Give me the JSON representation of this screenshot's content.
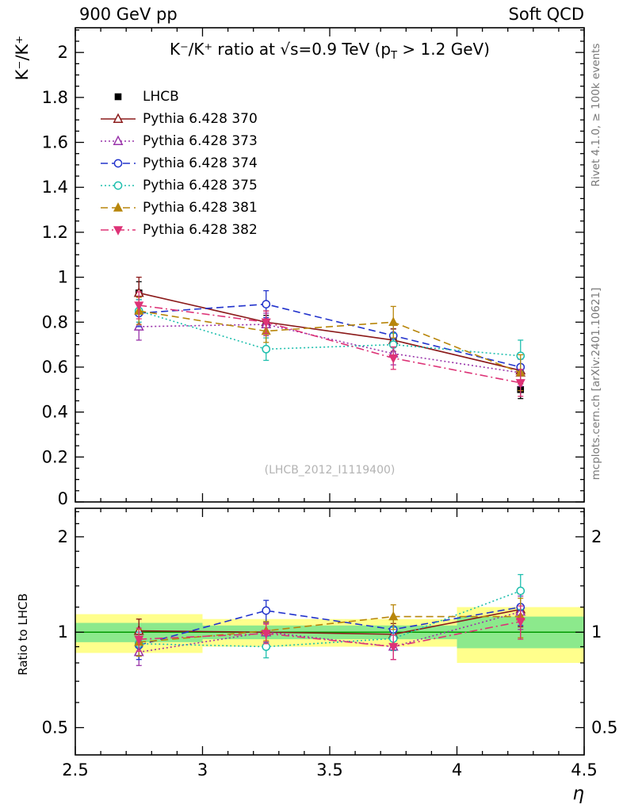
{
  "header": {
    "left": "900 GeV pp",
    "right": "Soft QCD"
  },
  "side_notes": {
    "top_right_vertical": "Rivet 4.1.0, ≥ 100k events",
    "bottom_right_vertical": "mcplots.cern.ch [arXiv:2401.10621]"
  },
  "chart_data": {
    "type": "line",
    "title": "K⁻/K⁺ ratio at √s=0.9 TeV (pT > 1.2 GeV)",
    "title_parts": {
      "pre": "K⁻/K⁺ ratio at √s=0.9 TeV (p",
      "sub": "T",
      "post": " > 1.2 GeV)"
    },
    "watermark": "(LHCB_2012_I1119400)",
    "xlabel": "η",
    "ylabel_main": "K⁻/K⁺",
    "ylabel_ratio": "Ratio to LHCB",
    "xlim": [
      2.5,
      4.5
    ],
    "ylim_main": [
      0,
      2.11
    ],
    "ylim_ratio": [
      0.41,
      2.46
    ],
    "ratio_scale": "log",
    "grid": "off",
    "legend_position": "top-left-inside",
    "x_major_ticks": [
      2.5,
      3,
      3.5,
      4,
      4.5
    ],
    "x_tick_labels": [
      "2.5",
      "3",
      "3.5",
      "4",
      "4.5"
    ],
    "y_ticks_main": [
      0,
      0.2,
      0.4,
      0.6,
      0.8,
      1,
      1.2,
      1.4,
      1.6,
      1.8,
      2
    ],
    "ratio_major_ticks": [
      0.5,
      1,
      2
    ],
    "ratio_minor_ticks": [
      0.6,
      0.7,
      0.8,
      0.9,
      1.2,
      1.4,
      1.6,
      1.8,
      2.2,
      2.4
    ],
    "x": [
      2.75,
      3.25,
      3.75,
      4.25
    ],
    "series": [
      {
        "id": "lhcb",
        "name": "LHCB",
        "color": "#000000",
        "marker": "square-filled",
        "line": "none",
        "values": [
          0.93,
          0.79,
          0.73,
          0.5
        ],
        "errors": [
          0.05,
          0.04,
          0.04,
          0.04
        ]
      },
      {
        "id": "pythia-370",
        "name": "Pythia 6.428 370",
        "color": "#8b1a1a",
        "marker": "triangle-open",
        "line": "solid",
        "values": [
          0.93,
          0.8,
          0.72,
          0.585
        ],
        "errors": [
          0.07,
          0.05,
          0.05,
          0.06
        ],
        "ratio": [
          1.01,
          1.0,
          0.985,
          1.18
        ],
        "ratio_errors": [
          0.09,
          0.07,
          0.08,
          0.14
        ]
      },
      {
        "id": "pythia-373",
        "name": "Pythia 6.428 373",
        "color": "#9933aa",
        "marker": "triangle-open",
        "line": "dotted",
        "values": [
          0.78,
          0.79,
          0.66,
          0.575
        ],
        "errors": [
          0.06,
          0.05,
          0.05,
          0.06
        ],
        "ratio": [
          0.865,
          1.0,
          0.9,
          1.16
        ],
        "ratio_errors": [
          0.08,
          0.07,
          0.08,
          0.14
        ]
      },
      {
        "id": "pythia-374",
        "name": "Pythia 6.428 374",
        "color": "#2233cc",
        "marker": "circle-open",
        "line": "dashed",
        "values": [
          0.84,
          0.88,
          0.74,
          0.6
        ],
        "errors": [
          0.06,
          0.06,
          0.05,
          0.06
        ],
        "ratio": [
          0.91,
          1.17,
          1.02,
          1.2
        ],
        "ratio_errors": [
          0.09,
          0.09,
          0.08,
          0.15
        ]
      },
      {
        "id": "pythia-375",
        "name": "Pythia 6.428 375",
        "color": "#1fbfae",
        "marker": "circle-open",
        "line": "dotted",
        "values": [
          0.85,
          0.68,
          0.7,
          0.65
        ],
        "errors": [
          0.05,
          0.05,
          0.05,
          0.07
        ],
        "ratio": [
          0.92,
          0.9,
          0.955,
          1.35
        ],
        "ratio_errors": [
          0.08,
          0.07,
          0.08,
          0.17
        ]
      },
      {
        "id": "pythia-381",
        "name": "Pythia 6.428 381",
        "color": "#b8860b",
        "marker": "triangle-filled",
        "line": "dashed",
        "values": [
          0.85,
          0.76,
          0.8,
          0.575
        ],
        "errors": [
          0.06,
          0.05,
          0.07,
          0.08
        ],
        "ratio": [
          0.93,
          1.01,
          1.12,
          1.12
        ],
        "ratio_errors": [
          0.09,
          0.07,
          0.1,
          0.16
        ]
      },
      {
        "id": "pythia-382",
        "name": "Pythia 6.428 382",
        "color": "#dd3377",
        "marker": "triangle-down-filled",
        "line": "dashdot",
        "values": [
          0.875,
          0.8,
          0.64,
          0.53
        ],
        "errors": [
          0.06,
          0.05,
          0.05,
          0.06
        ],
        "ratio": [
          0.95,
          0.99,
          0.9,
          1.08
        ],
        "ratio_errors": [
          0.08,
          0.07,
          0.08,
          0.13
        ]
      }
    ],
    "bands": {
      "x_edges": [
        2.5,
        3,
        3.5,
        4,
        4.5
      ],
      "yellow": [
        [
          0.86,
          1.14
        ],
        [
          0.9,
          1.1
        ],
        [
          0.9,
          1.1
        ],
        [
          0.8,
          1.2
        ]
      ],
      "green": [
        [
          0.93,
          1.07
        ],
        [
          0.95,
          1.05
        ],
        [
          0.95,
          1.05
        ],
        [
          0.89,
          1.12
        ]
      ],
      "yellow_color": "#ffff8c",
      "green_color": "#8ce98c",
      "line_color": "#009900"
    }
  }
}
